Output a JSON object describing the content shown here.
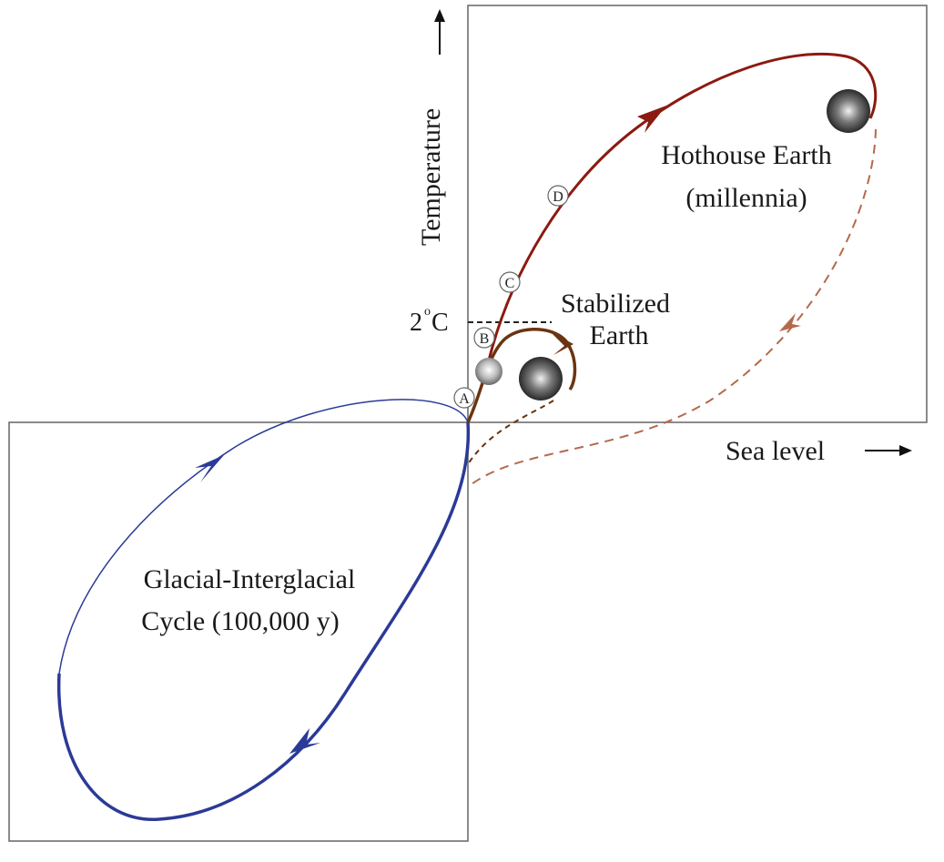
{
  "axes": {
    "y_label": "Temperature",
    "x_label": "Sea level",
    "threshold_label": "2",
    "threshold_unit": "C",
    "threshold_sup": "o"
  },
  "labels": {
    "hothouse_line1": "Hothouse Earth",
    "hothouse_line2": "(millennia)",
    "stabilized_line1": "Stabilized",
    "stabilized_line2": "Earth",
    "glacial_line1": "Glacial-Interglacial",
    "glacial_line2": "Cycle  (100,000 y)"
  },
  "markers": [
    "A",
    "B",
    "C",
    "D"
  ],
  "colors": {
    "glacial": "#2b3a97",
    "hothouse": "#8b1a10",
    "stabilized": "#6b3410",
    "dashed": "#b5694a",
    "frame": "#6e6e6e"
  }
}
